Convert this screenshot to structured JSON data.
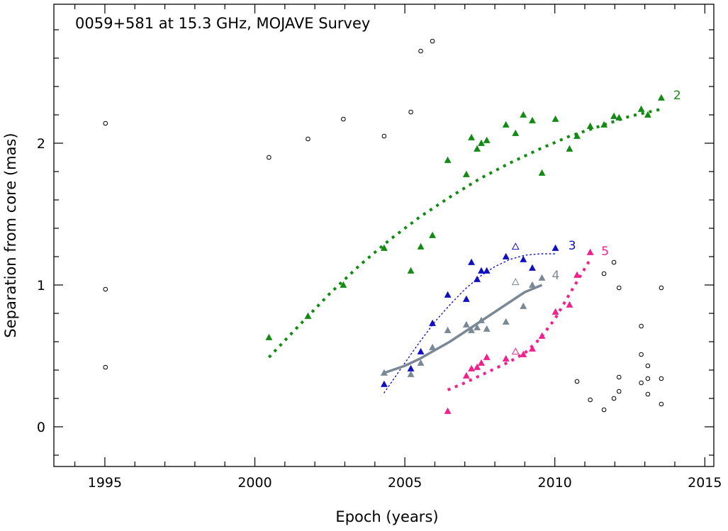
{
  "chart_data": {
    "type": "scatter",
    "title": "0059+581 at 15.3 GHz, MOJAVE Survey",
    "xlabel": "Epoch (years)",
    "ylabel": "Separation from core (mas)",
    "xlim": [
      1993.3,
      2015.3
    ],
    "ylim": [
      -0.28,
      2.98
    ],
    "x_major_ticks": [
      1995,
      2000,
      2005,
      2010,
      2015
    ],
    "x_tick_labels": [
      "1995",
      "2000",
      "2005",
      "2010",
      "2015"
    ],
    "x_minor_step": 1,
    "y_major_ticks": [
      0,
      1,
      2
    ],
    "y_tick_labels": [
      "0",
      "1",
      "2"
    ],
    "y_minor_step": 0.2,
    "grid": false,
    "colors": {
      "axis": "#000000",
      "other": "#000000",
      "c2": "#138a13",
      "c3": "#1010c0",
      "c4": "#7a8896",
      "c5": "#f0208c"
    },
    "series": [
      {
        "name": "unassigned",
        "label": "",
        "color_key": "other",
        "marker": "circle-open",
        "points": [
          [
            1995.02,
            2.14
          ],
          [
            1995.02,
            0.97
          ],
          [
            1995.02,
            0.42
          ],
          [
            2000.47,
            1.9
          ],
          [
            2001.77,
            2.03
          ],
          [
            2002.95,
            2.17
          ],
          [
            2004.31,
            2.05
          ],
          [
            2005.2,
            2.22
          ],
          [
            2005.53,
            2.65
          ],
          [
            2005.92,
            2.72
          ],
          [
            2010.74,
            0.32
          ],
          [
            2011.18,
            0.19
          ],
          [
            2011.64,
            1.08
          ],
          [
            2011.64,
            0.12
          ],
          [
            2011.97,
            1.16
          ],
          [
            2011.97,
            0.2
          ],
          [
            2012.14,
            0.98
          ],
          [
            2012.14,
            0.35
          ],
          [
            2012.14,
            0.25
          ],
          [
            2012.88,
            0.71
          ],
          [
            2012.88,
            0.51
          ],
          [
            2012.88,
            0.31
          ],
          [
            2013.1,
            0.43
          ],
          [
            2013.1,
            0.34
          ],
          [
            2013.1,
            0.23
          ],
          [
            2013.55,
            0.98
          ],
          [
            2013.55,
            0.34
          ],
          [
            2013.55,
            0.16
          ]
        ]
      },
      {
        "name": "component-2",
        "label": "2",
        "label_at": [
          2013.95,
          2.34
        ],
        "color_key": "c2",
        "marker": "triangle-filled",
        "points": [
          [
            2000.47,
            0.63
          ],
          [
            2001.77,
            0.78
          ],
          [
            2002.95,
            1.0
          ],
          [
            2004.31,
            1.26
          ],
          [
            2005.2,
            1.1
          ],
          [
            2005.53,
            1.27
          ],
          [
            2005.92,
            1.35
          ],
          [
            2006.43,
            1.88
          ],
          [
            2007.05,
            1.78
          ],
          [
            2007.22,
            2.04
          ],
          [
            2007.41,
            1.96
          ],
          [
            2007.55,
            2.0
          ],
          [
            2007.73,
            2.02
          ],
          [
            2008.37,
            2.13
          ],
          [
            2008.69,
            2.07
          ],
          [
            2008.95,
            2.2
          ],
          [
            2009.25,
            2.16
          ],
          [
            2009.57,
            1.79
          ],
          [
            2010.02,
            2.17
          ],
          [
            2010.49,
            1.96
          ],
          [
            2010.74,
            2.05
          ],
          [
            2011.18,
            2.12
          ],
          [
            2011.64,
            2.13
          ],
          [
            2011.97,
            2.19
          ],
          [
            2012.14,
            2.18
          ],
          [
            2012.88,
            2.24
          ],
          [
            2013.1,
            2.2
          ],
          [
            2013.55,
            2.32
          ]
        ],
        "fit": {
          "style": "dotted-thick",
          "points": [
            [
              2000.47,
              0.49
            ],
            [
              2001.5,
              0.72
            ],
            [
              2002.5,
              0.94
            ],
            [
              2003.5,
              1.14
            ],
            [
              2004.5,
              1.32
            ],
            [
              2005.5,
              1.48
            ],
            [
              2006.5,
              1.62
            ],
            [
              2007.5,
              1.75
            ],
            [
              2008.5,
              1.86
            ],
            [
              2009.5,
              1.96
            ],
            [
              2010.5,
              2.05
            ],
            [
              2011.5,
              2.12
            ],
            [
              2012.5,
              2.19
            ],
            [
              2013.55,
              2.24
            ]
          ]
        }
      },
      {
        "name": "component-3",
        "label": "3",
        "label_at": [
          2010.45,
          1.28
        ],
        "color_key": "c3",
        "marker": "triangle-filled",
        "points": [
          [
            2004.31,
            0.3
          ],
          [
            2005.2,
            0.41
          ],
          [
            2005.53,
            0.53
          ],
          [
            2005.92,
            0.73
          ],
          [
            2006.43,
            0.93
          ],
          [
            2007.05,
            0.9
          ],
          [
            2007.22,
            1.16
          ],
          [
            2007.41,
            1.04
          ],
          [
            2007.55,
            1.1
          ],
          [
            2007.73,
            1.1
          ],
          [
            2008.37,
            1.2
          ],
          [
            2008.95,
            1.18
          ],
          [
            2009.25,
            1.12
          ],
          [
            2010.02,
            1.26
          ]
        ],
        "open_points": [
          [
            2008.69,
            1.27
          ]
        ],
        "fit": {
          "style": "dotted-thin",
          "points": [
            [
              2004.31,
              0.24
            ],
            [
              2005.0,
              0.45
            ],
            [
              2005.5,
              0.6
            ],
            [
              2006.0,
              0.74
            ],
            [
              2006.5,
              0.86
            ],
            [
              2007.0,
              0.97
            ],
            [
              2007.5,
              1.06
            ],
            [
              2008.0,
              1.13
            ],
            [
              2008.5,
              1.18
            ],
            [
              2009.0,
              1.21
            ],
            [
              2009.5,
              1.22
            ],
            [
              2010.02,
              1.22
            ]
          ]
        }
      },
      {
        "name": "component-4",
        "label": "4",
        "label_at": [
          2009.9,
          1.07
        ],
        "color_key": "c4",
        "marker": "triangle-filled",
        "points": [
          [
            2004.31,
            0.38
          ],
          [
            2005.2,
            0.37
          ],
          [
            2005.53,
            0.45
          ],
          [
            2005.92,
            0.56
          ],
          [
            2006.43,
            0.68
          ],
          [
            2007.05,
            0.72
          ],
          [
            2007.22,
            0.68
          ],
          [
            2007.41,
            0.7
          ],
          [
            2007.55,
            0.75
          ],
          [
            2007.73,
            0.69
          ],
          [
            2008.37,
            0.74
          ],
          [
            2008.95,
            0.85
          ],
          [
            2009.25,
            1.0
          ],
          [
            2009.57,
            1.05
          ]
        ],
        "open_points": [
          [
            2008.69,
            1.02
          ]
        ],
        "fit": {
          "style": "solid-thick",
          "points": [
            [
              2004.31,
              0.38
            ],
            [
              2005.0,
              0.43
            ],
            [
              2005.5,
              0.48
            ],
            [
              2006.0,
              0.54
            ],
            [
              2006.5,
              0.6
            ],
            [
              2007.0,
              0.67
            ],
            [
              2007.5,
              0.74
            ],
            [
              2008.0,
              0.81
            ],
            [
              2008.5,
              0.88
            ],
            [
              2009.0,
              0.95
            ],
            [
              2009.57,
              1.0
            ]
          ]
        }
      },
      {
        "name": "component-5",
        "label": "5",
        "label_at": [
          2011.55,
          1.24
        ],
        "color_key": "c5",
        "marker": "triangle-filled",
        "points": [
          [
            2006.43,
            0.11
          ],
          [
            2007.05,
            0.36
          ],
          [
            2007.22,
            0.41
          ],
          [
            2007.41,
            0.42
          ],
          [
            2007.55,
            0.45
          ],
          [
            2007.73,
            0.49
          ],
          [
            2008.37,
            0.48
          ],
          [
            2008.95,
            0.51
          ],
          [
            2009.25,
            0.55
          ],
          [
            2009.57,
            0.64
          ],
          [
            2010.02,
            0.81
          ],
          [
            2010.49,
            0.86
          ],
          [
            2010.74,
            1.07
          ],
          [
            2011.18,
            1.23
          ]
        ],
        "open_points": [
          [
            2008.69,
            0.53
          ]
        ],
        "fit": {
          "style": "dotted-thick",
          "points": [
            [
              2006.43,
              0.26
            ],
            [
              2007.0,
              0.31
            ],
            [
              2007.5,
              0.36
            ],
            [
              2008.0,
              0.41
            ],
            [
              2008.5,
              0.46
            ],
            [
              2009.0,
              0.52
            ],
            [
              2009.5,
              0.62
            ],
            [
              2010.0,
              0.76
            ],
            [
              2010.5,
              0.94
            ],
            [
              2011.18,
              1.18
            ]
          ]
        }
      }
    ]
  }
}
